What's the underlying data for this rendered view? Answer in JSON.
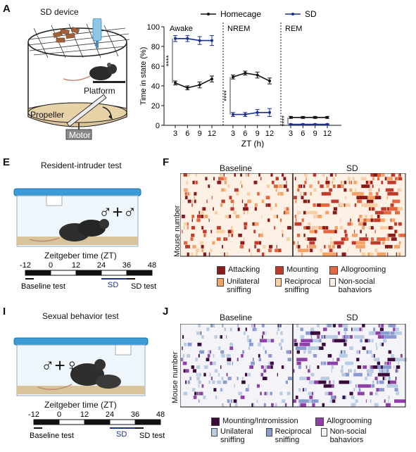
{
  "panels": {
    "A": {
      "label": "A",
      "device_title": "SD device",
      "platform": "Platform",
      "propeller": "Propeller",
      "motor": "Motor"
    },
    "E": {
      "label": "E",
      "title": "Resident-intruder test",
      "symbols": "♂+♂",
      "zt_title": "Zeitgeber time (ZT)",
      "ticks": [
        "-12",
        "0",
        "12",
        "24",
        "36",
        "48"
      ],
      "sd": "SD",
      "baseline_test": "Baseline test",
      "sd_test": "SD test"
    },
    "F": {
      "label": "F",
      "baseline": "Baseline",
      "sd": "SD",
      "ylabel": "Mouse number",
      "legend": [
        {
          "name": "Attacking",
          "color": "#8b1a1a"
        },
        {
          "name": "Mounting",
          "color": "#c0392b"
        },
        {
          "name": "Allogrooming",
          "color": "#e8663d"
        },
        {
          "name": "Unilateral sniffing",
          "color": "#f5a266"
        },
        {
          "name": "Reciprocal sniffing",
          "color": "#f9cfa6"
        },
        {
          "name": "Non-social bahaviors",
          "color": "#fdf1e6"
        }
      ]
    },
    "I": {
      "label": "I",
      "title": "Sexual behavior test",
      "symbols": "♂+♀",
      "zt_title": "Zeitgeber time (ZT)",
      "ticks": [
        "-12",
        "0",
        "12",
        "24",
        "36",
        "48"
      ],
      "sd": "SD",
      "baseline_test": "Baseline test",
      "sd_test": "SD test"
    },
    "J": {
      "label": "J",
      "baseline": "Baseline",
      "sd": "SD",
      "ylabel": "Mouse number",
      "legend": [
        {
          "name": "Mounting/Intromission",
          "color": "#3a0a3a"
        },
        {
          "name": "Allogrooming",
          "color": "#8e3fa8"
        },
        {
          "name": "Unilateral sniffing",
          "color": "#b8cce4"
        },
        {
          "name": "Reciprocal sniffing",
          "color": "#8a9bd1"
        },
        {
          "name": "Non-social bahaviors",
          "color": "#f4f4f8"
        }
      ]
    }
  },
  "chart_data": {
    "type": "line",
    "xlabel": "ZT (h)",
    "ylabel": "Time in state (%)",
    "ylim": [
      0,
      100
    ],
    "yticks": [
      "0",
      "20",
      "40",
      "60",
      "80",
      "100"
    ],
    "xticks": [
      "3",
      "6",
      "9",
      "12"
    ],
    "legend": "top",
    "states": [
      {
        "name": "Awake",
        "significance": "****",
        "series": [
          {
            "name": "Homecage",
            "color": "#111111",
            "values": [
              43,
              38,
              41,
              47
            ],
            "err": [
              2,
              2,
              3,
              3
            ]
          },
          {
            "name": "SD",
            "color": "#1a2f8f",
            "values": [
              88,
              88,
              86,
              86
            ],
            "err": [
              3,
              3,
              4,
              5
            ]
          }
        ]
      },
      {
        "name": "NREM",
        "significance": "****",
        "series": [
          {
            "name": "Homecage",
            "color": "#111111",
            "values": [
              49,
              53,
              51,
              45
            ],
            "err": [
              2,
              2,
              3,
              3
            ]
          },
          {
            "name": "SD",
            "color": "#1a2f8f",
            "values": [
              11,
              11,
              13,
              13
            ],
            "err": [
              2,
              2,
              3,
              4
            ]
          }
        ]
      },
      {
        "name": "REM",
        "significance": "****",
        "series": [
          {
            "name": "Homecage",
            "color": "#111111",
            "values": [
              8,
              8,
              8,
              8
            ],
            "err": [
              1,
              1,
              1,
              1
            ]
          },
          {
            "name": "SD",
            "color": "#1a2f8f",
            "values": [
              1,
              1,
              1,
              1
            ],
            "err": [
              0.5,
              0.5,
              0.5,
              0.5
            ]
          }
        ]
      }
    ]
  }
}
